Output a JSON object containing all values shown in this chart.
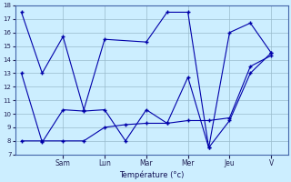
{
  "xlabel": "Température (°c)",
  "background_color": "#cceeff",
  "grid_color": "#99bbcc",
  "line_color": "#0000aa",
  "ylim": [
    7,
    18
  ],
  "yticks": [
    7,
    8,
    9,
    10,
    11,
    12,
    13,
    14,
    15,
    16,
    17,
    18
  ],
  "day_labels": [
    "Sam",
    "Lun",
    "Mar",
    "Mer",
    "Jeu",
    "V"
  ],
  "day_positions": [
    1,
    2,
    3,
    4,
    5,
    6
  ],
  "series1_x": [
    0.0,
    0.5,
    1.0,
    1.5,
    2.0,
    3.0,
    3.5,
    4.0,
    4.5,
    5.0,
    5.5,
    6.0
  ],
  "series1_y": [
    17.5,
    13.0,
    15.7,
    10.3,
    15.5,
    15.3,
    17.5,
    17.5,
    7.5,
    16.0,
    16.7,
    14.5
  ],
  "series2_x": [
    0.0,
    0.5,
    1.0,
    1.5,
    2.0,
    2.5,
    3.0,
    3.5,
    4.0,
    4.5,
    5.0,
    5.5,
    6.0
  ],
  "series2_y": [
    13.0,
    7.9,
    10.3,
    10.2,
    10.3,
    8.0,
    10.3,
    9.3,
    12.7,
    7.5,
    9.5,
    13.0,
    14.5
  ],
  "series3_x": [
    0.0,
    0.5,
    1.0,
    1.5,
    2.0,
    2.5,
    3.0,
    3.5,
    4.0,
    4.5,
    5.0,
    5.5,
    6.0
  ],
  "series3_y": [
    8.0,
    8.0,
    8.0,
    8.0,
    9.0,
    9.2,
    9.3,
    9.3,
    9.5,
    9.5,
    9.7,
    13.5,
    14.3
  ]
}
